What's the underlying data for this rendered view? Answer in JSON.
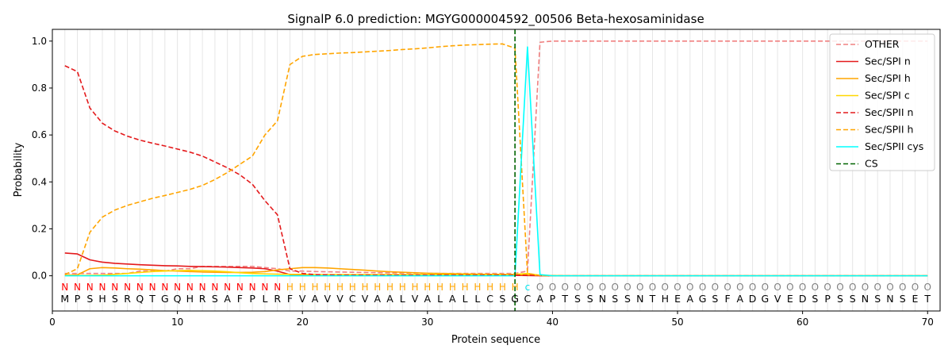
{
  "chart_data": {
    "type": "line",
    "title": "SignalP 6.0 prediction: MGYG000004592_00506 Beta-hexosaminidase",
    "xlabel": "Protein sequence",
    "ylabel": "Probability",
    "xlim": [
      0,
      71
    ],
    "ylim": [
      -0.15,
      1.05
    ],
    "xticks": [
      0,
      10,
      20,
      30,
      40,
      50,
      60,
      70
    ],
    "yticks": [
      0.0,
      0.2,
      0.4,
      0.6,
      0.8,
      1.0
    ],
    "grid": "vertical lines at each residue position",
    "legend_position": "top-right",
    "x": [
      1,
      2,
      3,
      4,
      5,
      6,
      7,
      8,
      9,
      10,
      11,
      12,
      13,
      14,
      15,
      16,
      17,
      18,
      19,
      20,
      21,
      22,
      23,
      24,
      25,
      26,
      27,
      28,
      29,
      30,
      31,
      32,
      33,
      34,
      35,
      36,
      37,
      38,
      39,
      40,
      41,
      42,
      43,
      44,
      45,
      46,
      47,
      48,
      49,
      50,
      51,
      52,
      53,
      54,
      55,
      56,
      57,
      58,
      59,
      60,
      61,
      62,
      63,
      64,
      65,
      66,
      67,
      68,
      69,
      70
    ],
    "sequence": [
      "M",
      "P",
      "S",
      "H",
      "S",
      "R",
      "Q",
      "T",
      "G",
      "Q",
      "H",
      "R",
      "S",
      "A",
      "F",
      "P",
      "L",
      "R",
      "F",
      "V",
      "A",
      "V",
      "V",
      "C",
      "V",
      "A",
      "A",
      "L",
      "V",
      "A",
      "L",
      "A",
      "L",
      "L",
      "C",
      "S",
      "G",
      "C",
      "A",
      "P",
      "T",
      "S",
      "S",
      "N",
      "S",
      "S",
      "N",
      "T",
      "H",
      "E",
      "A",
      "G",
      "S",
      "F",
      "A",
      "D",
      "G",
      "V",
      "E",
      "D",
      "S",
      "P",
      "S",
      "S",
      "N",
      "S",
      "N",
      "S",
      "E",
      "T"
    ],
    "annotations": [
      "N",
      "N",
      "N",
      "N",
      "N",
      "N",
      "N",
      "N",
      "N",
      "N",
      "N",
      "N",
      "N",
      "N",
      "N",
      "N",
      "N",
      "N",
      "H",
      "H",
      "H",
      "H",
      "H",
      "H",
      "H",
      "H",
      "H",
      "H",
      "H",
      "H",
      "H",
      "H",
      "H",
      "H",
      "H",
      "H",
      "H",
      "C",
      "O",
      "O",
      "O",
      "O",
      "O",
      "O",
      "O",
      "O",
      "O",
      "O",
      "O",
      "O",
      "O",
      "O",
      "O",
      "O",
      "O",
      "O",
      "O",
      "O",
      "O",
      "O",
      "O",
      "O",
      "O",
      "O",
      "O",
      "O",
      "O",
      "O",
      "O",
      "O"
    ],
    "annotation_colors": {
      "N": "#ff0000",
      "H": "#ffa500",
      "C": "#00e5ee",
      "O": "#808080"
    },
    "cs_position": 37,
    "series": [
      {
        "name": "OTHER",
        "color": "#f08080",
        "dash": "dashed",
        "values": [
          0.01,
          0.01,
          0.01,
          0.01,
          0.01,
          0.01,
          0.02,
          0.02,
          0.02,
          0.03,
          0.03,
          0.04,
          0.04,
          0.04,
          0.04,
          0.04,
          0.035,
          0.03,
          0.02,
          0.02,
          0.018,
          0.017,
          0.016,
          0.015,
          0.014,
          0.013,
          0.012,
          0.011,
          0.011,
          0.01,
          0.01,
          0.01,
          0.01,
          0.01,
          0.01,
          0.01,
          0.01,
          0.02,
          0.995,
          1.0,
          1.0,
          1.0,
          1.0,
          1.0,
          1.0,
          1.0,
          1.0,
          1.0,
          1.0,
          1.0,
          1.0,
          1.0,
          1.0,
          1.0,
          1.0,
          1.0,
          1.0,
          1.0,
          1.0,
          1.0,
          1.0,
          1.0,
          1.0,
          1.0,
          1.0,
          1.0,
          1.0,
          1.0,
          1.0,
          1.0
        ]
      },
      {
        "name": "Sec/SPI n",
        "color": "#e41a1c",
        "dash": "solid",
        "values": [
          0.097,
          0.093,
          0.068,
          0.058,
          0.053,
          0.05,
          0.047,
          0.045,
          0.043,
          0.042,
          0.04,
          0.039,
          0.038,
          0.037,
          0.035,
          0.033,
          0.03,
          0.02,
          0.005,
          0.003,
          0.002,
          0.002,
          0.002,
          0.002,
          0.002,
          0.002,
          0.002,
          0.002,
          0.002,
          0.002,
          0.002,
          0.002,
          0.002,
          0.002,
          0.002,
          0.002,
          0.002,
          0.001,
          0,
          0,
          0,
          0,
          0,
          0,
          0,
          0,
          0,
          0,
          0,
          0,
          0,
          0,
          0,
          0,
          0,
          0,
          0,
          0,
          0,
          0,
          0,
          0,
          0,
          0,
          0,
          0,
          0,
          0,
          0,
          0
        ]
      },
      {
        "name": "Sec/SPI h",
        "color": "#ffa500",
        "dash": "solid",
        "values": [
          0.002,
          0.004,
          0.03,
          0.035,
          0.033,
          0.03,
          0.028,
          0.025,
          0.022,
          0.02,
          0.018,
          0.016,
          0.015,
          0.014,
          0.014,
          0.015,
          0.018,
          0.025,
          0.03,
          0.035,
          0.035,
          0.033,
          0.03,
          0.027,
          0.024,
          0.02,
          0.017,
          0.015,
          0.013,
          0.011,
          0.01,
          0.009,
          0.008,
          0.007,
          0.006,
          0.006,
          0.005,
          0.004,
          0.002,
          0.001,
          0,
          0,
          0,
          0,
          0,
          0,
          0,
          0,
          0,
          0,
          0,
          0,
          0,
          0,
          0,
          0,
          0,
          0,
          0,
          0,
          0,
          0,
          0,
          0,
          0,
          0,
          0,
          0,
          0,
          0
        ]
      },
      {
        "name": "Sec/SPI c",
        "color": "#ffd700",
        "dash": "solid",
        "values": [
          0.001,
          0.001,
          0.002,
          0.003,
          0.006,
          0.01,
          0.014,
          0.018,
          0.02,
          0.022,
          0.023,
          0.022,
          0.02,
          0.017,
          0.013,
          0.01,
          0.008,
          0.007,
          0.006,
          0.006,
          0.005,
          0.005,
          0.005,
          0.005,
          0.005,
          0.005,
          0.005,
          0.005,
          0.005,
          0.005,
          0.005,
          0.005,
          0.005,
          0.005,
          0.005,
          0.005,
          0.006,
          0.01,
          0.002,
          0.001,
          0,
          0,
          0,
          0,
          0,
          0,
          0,
          0,
          0,
          0,
          0,
          0,
          0,
          0,
          0,
          0,
          0,
          0,
          0,
          0,
          0,
          0,
          0,
          0,
          0,
          0,
          0,
          0,
          0,
          0
        ]
      },
      {
        "name": "Sec/SPII n",
        "color": "#e41a1c",
        "dash": "dashed",
        "values": [
          0.895,
          0.87,
          0.715,
          0.65,
          0.617,
          0.595,
          0.578,
          0.565,
          0.553,
          0.54,
          0.527,
          0.51,
          0.485,
          0.46,
          0.43,
          0.39,
          0.32,
          0.26,
          0.03,
          0.01,
          0.005,
          0.004,
          0.003,
          0.003,
          0.003,
          0.003,
          0.003,
          0.003,
          0.003,
          0.003,
          0.003,
          0.003,
          0.003,
          0.003,
          0.003,
          0.003,
          0.003,
          0.002,
          0.001,
          0,
          0,
          0,
          0,
          0,
          0,
          0,
          0,
          0,
          0,
          0,
          0,
          0,
          0,
          0,
          0,
          0,
          0,
          0,
          0,
          0,
          0,
          0,
          0,
          0,
          0,
          0,
          0,
          0,
          0,
          0
        ]
      },
      {
        "name": "Sec/SPII h",
        "color": "#ffa500",
        "dash": "dashed",
        "values": [
          0.005,
          0.03,
          0.185,
          0.25,
          0.28,
          0.3,
          0.315,
          0.33,
          0.342,
          0.355,
          0.368,
          0.385,
          0.41,
          0.44,
          0.475,
          0.51,
          0.6,
          0.66,
          0.9,
          0.935,
          0.943,
          0.946,
          0.949,
          0.951,
          0.954,
          0.957,
          0.96,
          0.964,
          0.967,
          0.971,
          0.976,
          0.98,
          0.983,
          0.985,
          0.987,
          0.988,
          0.97,
          0.01,
          0.001,
          0,
          0,
          0,
          0,
          0,
          0,
          0,
          0,
          0,
          0,
          0,
          0,
          0,
          0,
          0,
          0,
          0,
          0,
          0,
          0,
          0,
          0,
          0,
          0,
          0,
          0,
          0,
          0,
          0,
          0,
          0
        ]
      },
      {
        "name": "Sec/SPII cys",
        "color": "#00ffff",
        "dash": "solid",
        "values": [
          0,
          0,
          0,
          0,
          0,
          0,
          0,
          0,
          0,
          0,
          0,
          0,
          0,
          0,
          0,
          0,
          0,
          0,
          0,
          0,
          0,
          0,
          0,
          0,
          0,
          0,
          0,
          0,
          0,
          0,
          0,
          0,
          0,
          0,
          0,
          0,
          0,
          0.975,
          0.005,
          0,
          0,
          0,
          0,
          0,
          0,
          0,
          0,
          0,
          0,
          0,
          0,
          0,
          0,
          0,
          0,
          0,
          0,
          0,
          0,
          0,
          0,
          0,
          0,
          0,
          0,
          0,
          0,
          0,
          0,
          0
        ]
      },
      {
        "name": "CS",
        "color": "#006400",
        "dash": "dashed",
        "type": "vline",
        "x": 37
      }
    ]
  }
}
